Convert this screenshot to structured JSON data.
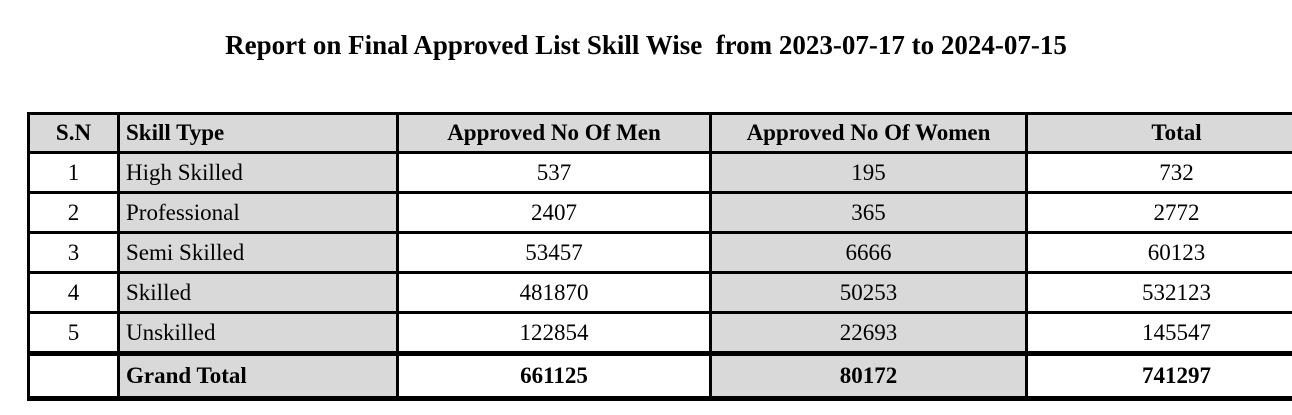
{
  "title": "Report on Final Approved List Skill Wise  from 2023-07-17 to 2024-07-15",
  "colors": {
    "shaded_cell_bg": "#d9d9d9",
    "border": "#000000",
    "text": "#000000",
    "page_bg": "#ffffff"
  },
  "table": {
    "headers": [
      "S.N",
      "Skill Type",
      "Approved No Of Men",
      "Approved No Of Women",
      "Total"
    ],
    "rows": [
      {
        "sn": "1",
        "skill": "High Skilled",
        "men": "537",
        "women": "195",
        "total": "732"
      },
      {
        "sn": "2",
        "skill": "Professional",
        "men": "2407",
        "women": "365",
        "total": "2772"
      },
      {
        "sn": "3",
        "skill": "Semi Skilled",
        "men": "53457",
        "women": "6666",
        "total": "60123"
      },
      {
        "sn": "4",
        "skill": "Skilled",
        "men": "481870",
        "women": "50253",
        "total": "532123"
      },
      {
        "sn": "5",
        "skill": "Unskilled",
        "men": "122854",
        "women": "22693",
        "total": "145547"
      }
    ],
    "grand_total": {
      "sn": "",
      "label": "Grand Total",
      "men": "661125",
      "women": "80172",
      "total": "741297"
    }
  }
}
